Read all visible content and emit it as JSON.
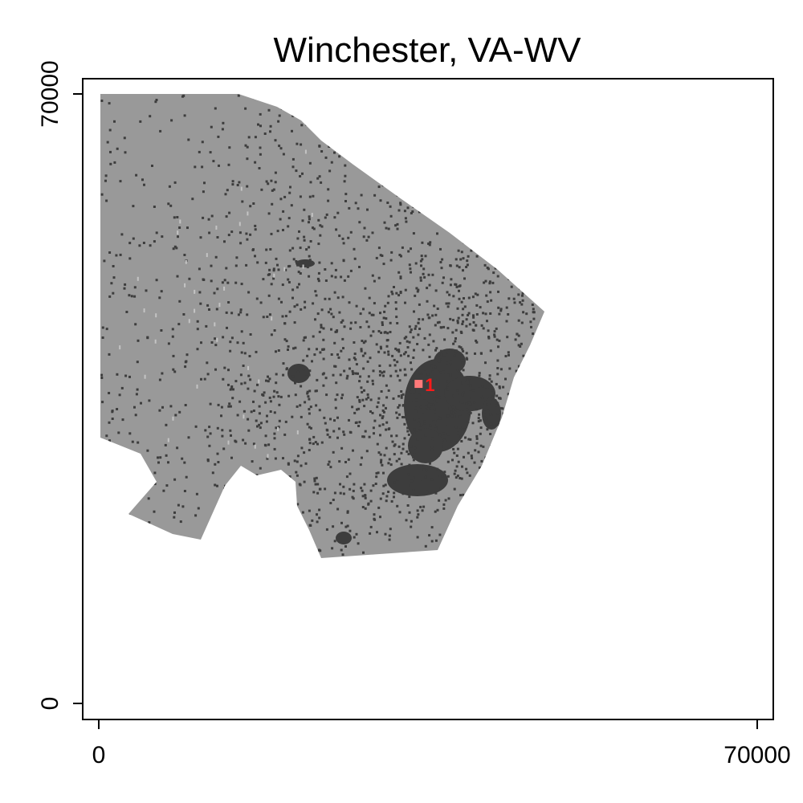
{
  "title": "Winchester, VA-WV",
  "colors": {
    "background": "#ffffff",
    "region_fill": "#999999",
    "built_fill": "#3d3d3d",
    "light_speck": "#c4c4c4",
    "marker": "#ff7a7a",
    "marker_label": "#ff1a1a"
  },
  "axes": {
    "xlim": [
      0,
      70000
    ],
    "ylim": [
      0,
      70000
    ],
    "x_ticks": [
      {
        "value": 0,
        "label": "0"
      },
      {
        "value": 70000,
        "label": "70000"
      }
    ],
    "y_ticks": [
      {
        "value": 0,
        "label": "0"
      },
      {
        "value": 70000,
        "label": "70000"
      }
    ]
  },
  "markers": [
    {
      "label": "1",
      "x": 34000,
      "y": 36700
    }
  ]
}
